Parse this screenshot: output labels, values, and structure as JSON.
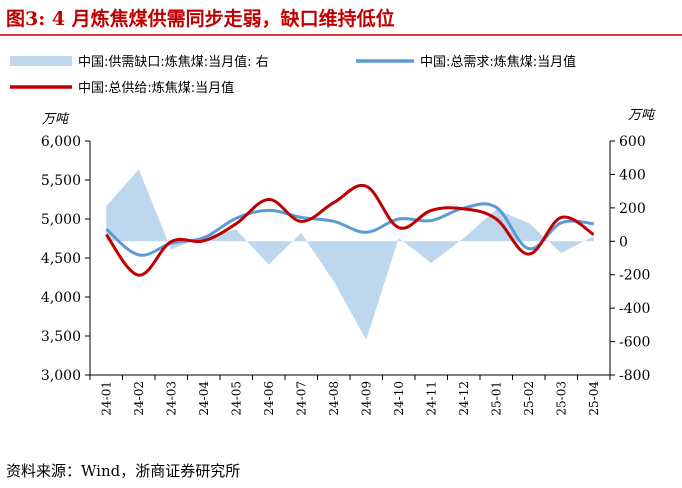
{
  "title": "图3:   4 月炼焦煤供需同步走弱，缺口维持低位",
  "source": "资料来源：Wind，浙商证券研究所",
  "colors": {
    "title": "#c00000",
    "area": "#bdd7ee",
    "demand": "#5b9bd5",
    "supply": "#c00000"
  },
  "chart_data": {
    "type": "line",
    "categories": [
      "24-01",
      "24-02",
      "24-03",
      "24-04",
      "24-05",
      "24-06",
      "24-07",
      "24-08",
      "24-09",
      "24-10",
      "24-11",
      "24-12",
      "25-01",
      "25-02",
      "25-03",
      "25-04"
    ],
    "left_axis": {
      "unit": "万吨",
      "min": 3000,
      "max": 6000,
      "step": 500,
      "ticks": [
        "3,000",
        "3,500",
        "4,000",
        "4,500",
        "5,000",
        "5,500",
        "6,000"
      ]
    },
    "right_axis": {
      "unit": "万吨",
      "min": -800,
      "max": 600,
      "step": 200,
      "ticks": [
        "-800",
        "-600",
        "-400",
        "-200",
        "0",
        "200",
        "400",
        "600"
      ]
    },
    "series": [
      {
        "name": "中国:供需缺口:炼焦煤:当月值: 右",
        "type": "area",
        "axis": "right",
        "values": [
          210,
          430,
          -50,
          30,
          70,
          -140,
          50,
          -240,
          -590,
          20,
          -130,
          20,
          190,
          110,
          -70,
          30
        ]
      },
      {
        "name": "中国:总需求:炼焦煤:当月值",
        "type": "line",
        "axis": "left",
        "values": [
          4870,
          4540,
          4690,
          4760,
          5010,
          5110,
          5020,
          4970,
          4830,
          5000,
          4980,
          5140,
          5150,
          4620,
          4950,
          4940
        ]
      },
      {
        "name": "中国:总供给:炼焦煤:当月值",
        "type": "line",
        "axis": "left",
        "values": [
          4800,
          4280,
          4710,
          4720,
          4940,
          5250,
          4970,
          5210,
          5420,
          4890,
          5110,
          5130,
          5000,
          4550,
          5020,
          4800
        ]
      }
    ]
  }
}
